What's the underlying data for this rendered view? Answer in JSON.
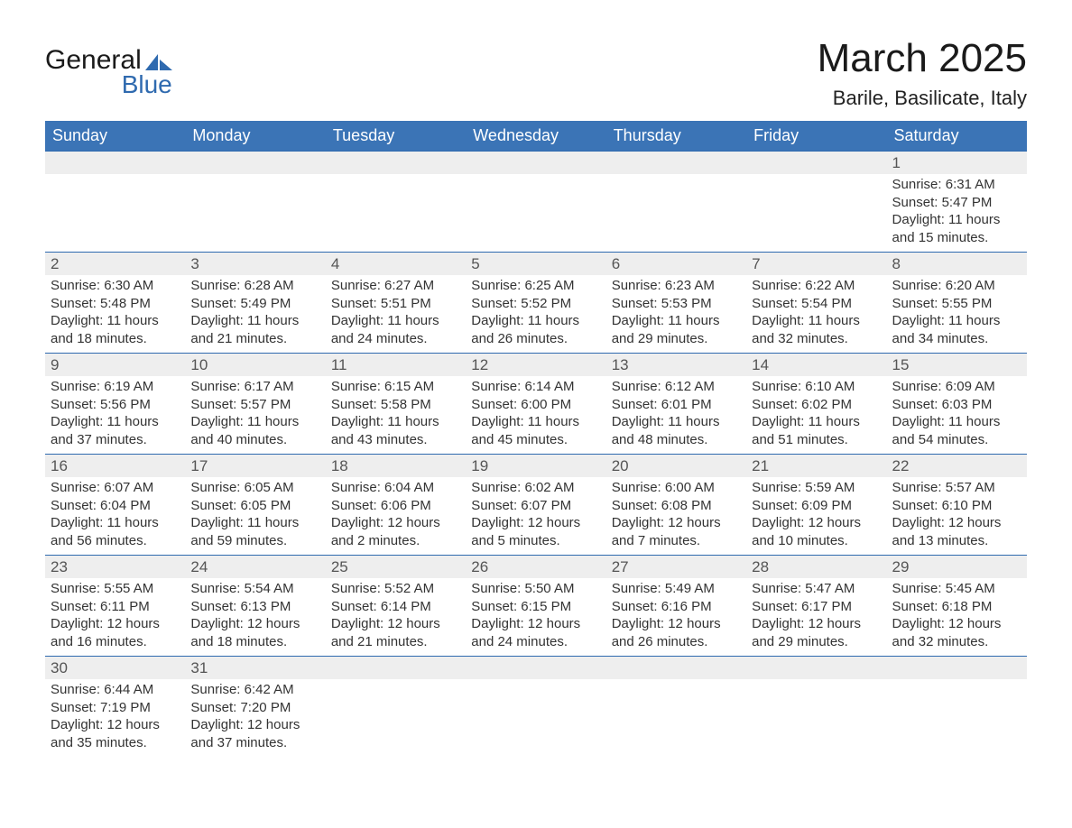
{
  "brand": {
    "line1": "General",
    "line2": "Blue",
    "accent_color": "#2f6aaf",
    "text_color": "#1a1a1a"
  },
  "title": "March 2025",
  "location": "Barile, Basilicate, Italy",
  "header_bg": "#3b74b6",
  "daynum_bg": "#eeeeee",
  "border_color": "#2f6aaf",
  "days_of_week": [
    "Sunday",
    "Monday",
    "Tuesday",
    "Wednesday",
    "Thursday",
    "Friday",
    "Saturday"
  ],
  "weeks": [
    [
      null,
      null,
      null,
      null,
      null,
      null,
      {
        "n": "1",
        "sunrise": "Sunrise: 6:31 AM",
        "sunset": "Sunset: 5:47 PM",
        "dl1": "Daylight: 11 hours",
        "dl2": "and 15 minutes."
      }
    ],
    [
      {
        "n": "2",
        "sunrise": "Sunrise: 6:30 AM",
        "sunset": "Sunset: 5:48 PM",
        "dl1": "Daylight: 11 hours",
        "dl2": "and 18 minutes."
      },
      {
        "n": "3",
        "sunrise": "Sunrise: 6:28 AM",
        "sunset": "Sunset: 5:49 PM",
        "dl1": "Daylight: 11 hours",
        "dl2": "and 21 minutes."
      },
      {
        "n": "4",
        "sunrise": "Sunrise: 6:27 AM",
        "sunset": "Sunset: 5:51 PM",
        "dl1": "Daylight: 11 hours",
        "dl2": "and 24 minutes."
      },
      {
        "n": "5",
        "sunrise": "Sunrise: 6:25 AM",
        "sunset": "Sunset: 5:52 PM",
        "dl1": "Daylight: 11 hours",
        "dl2": "and 26 minutes."
      },
      {
        "n": "6",
        "sunrise": "Sunrise: 6:23 AM",
        "sunset": "Sunset: 5:53 PM",
        "dl1": "Daylight: 11 hours",
        "dl2": "and 29 minutes."
      },
      {
        "n": "7",
        "sunrise": "Sunrise: 6:22 AM",
        "sunset": "Sunset: 5:54 PM",
        "dl1": "Daylight: 11 hours",
        "dl2": "and 32 minutes."
      },
      {
        "n": "8",
        "sunrise": "Sunrise: 6:20 AM",
        "sunset": "Sunset: 5:55 PM",
        "dl1": "Daylight: 11 hours",
        "dl2": "and 34 minutes."
      }
    ],
    [
      {
        "n": "9",
        "sunrise": "Sunrise: 6:19 AM",
        "sunset": "Sunset: 5:56 PM",
        "dl1": "Daylight: 11 hours",
        "dl2": "and 37 minutes."
      },
      {
        "n": "10",
        "sunrise": "Sunrise: 6:17 AM",
        "sunset": "Sunset: 5:57 PM",
        "dl1": "Daylight: 11 hours",
        "dl2": "and 40 minutes."
      },
      {
        "n": "11",
        "sunrise": "Sunrise: 6:15 AM",
        "sunset": "Sunset: 5:58 PM",
        "dl1": "Daylight: 11 hours",
        "dl2": "and 43 minutes."
      },
      {
        "n": "12",
        "sunrise": "Sunrise: 6:14 AM",
        "sunset": "Sunset: 6:00 PM",
        "dl1": "Daylight: 11 hours",
        "dl2": "and 45 minutes."
      },
      {
        "n": "13",
        "sunrise": "Sunrise: 6:12 AM",
        "sunset": "Sunset: 6:01 PM",
        "dl1": "Daylight: 11 hours",
        "dl2": "and 48 minutes."
      },
      {
        "n": "14",
        "sunrise": "Sunrise: 6:10 AM",
        "sunset": "Sunset: 6:02 PM",
        "dl1": "Daylight: 11 hours",
        "dl2": "and 51 minutes."
      },
      {
        "n": "15",
        "sunrise": "Sunrise: 6:09 AM",
        "sunset": "Sunset: 6:03 PM",
        "dl1": "Daylight: 11 hours",
        "dl2": "and 54 minutes."
      }
    ],
    [
      {
        "n": "16",
        "sunrise": "Sunrise: 6:07 AM",
        "sunset": "Sunset: 6:04 PM",
        "dl1": "Daylight: 11 hours",
        "dl2": "and 56 minutes."
      },
      {
        "n": "17",
        "sunrise": "Sunrise: 6:05 AM",
        "sunset": "Sunset: 6:05 PM",
        "dl1": "Daylight: 11 hours",
        "dl2": "and 59 minutes."
      },
      {
        "n": "18",
        "sunrise": "Sunrise: 6:04 AM",
        "sunset": "Sunset: 6:06 PM",
        "dl1": "Daylight: 12 hours",
        "dl2": "and 2 minutes."
      },
      {
        "n": "19",
        "sunrise": "Sunrise: 6:02 AM",
        "sunset": "Sunset: 6:07 PM",
        "dl1": "Daylight: 12 hours",
        "dl2": "and 5 minutes."
      },
      {
        "n": "20",
        "sunrise": "Sunrise: 6:00 AM",
        "sunset": "Sunset: 6:08 PM",
        "dl1": "Daylight: 12 hours",
        "dl2": "and 7 minutes."
      },
      {
        "n": "21",
        "sunrise": "Sunrise: 5:59 AM",
        "sunset": "Sunset: 6:09 PM",
        "dl1": "Daylight: 12 hours",
        "dl2": "and 10 minutes."
      },
      {
        "n": "22",
        "sunrise": "Sunrise: 5:57 AM",
        "sunset": "Sunset: 6:10 PM",
        "dl1": "Daylight: 12 hours",
        "dl2": "and 13 minutes."
      }
    ],
    [
      {
        "n": "23",
        "sunrise": "Sunrise: 5:55 AM",
        "sunset": "Sunset: 6:11 PM",
        "dl1": "Daylight: 12 hours",
        "dl2": "and 16 minutes."
      },
      {
        "n": "24",
        "sunrise": "Sunrise: 5:54 AM",
        "sunset": "Sunset: 6:13 PM",
        "dl1": "Daylight: 12 hours",
        "dl2": "and 18 minutes."
      },
      {
        "n": "25",
        "sunrise": "Sunrise: 5:52 AM",
        "sunset": "Sunset: 6:14 PM",
        "dl1": "Daylight: 12 hours",
        "dl2": "and 21 minutes."
      },
      {
        "n": "26",
        "sunrise": "Sunrise: 5:50 AM",
        "sunset": "Sunset: 6:15 PM",
        "dl1": "Daylight: 12 hours",
        "dl2": "and 24 minutes."
      },
      {
        "n": "27",
        "sunrise": "Sunrise: 5:49 AM",
        "sunset": "Sunset: 6:16 PM",
        "dl1": "Daylight: 12 hours",
        "dl2": "and 26 minutes."
      },
      {
        "n": "28",
        "sunrise": "Sunrise: 5:47 AM",
        "sunset": "Sunset: 6:17 PM",
        "dl1": "Daylight: 12 hours",
        "dl2": "and 29 minutes."
      },
      {
        "n": "29",
        "sunrise": "Sunrise: 5:45 AM",
        "sunset": "Sunset: 6:18 PM",
        "dl1": "Daylight: 12 hours",
        "dl2": "and 32 minutes."
      }
    ],
    [
      {
        "n": "30",
        "sunrise": "Sunrise: 6:44 AM",
        "sunset": "Sunset: 7:19 PM",
        "dl1": "Daylight: 12 hours",
        "dl2": "and 35 minutes."
      },
      {
        "n": "31",
        "sunrise": "Sunrise: 6:42 AM",
        "sunset": "Sunset: 7:20 PM",
        "dl1": "Daylight: 12 hours",
        "dl2": "and 37 minutes."
      },
      null,
      null,
      null,
      null,
      null
    ]
  ]
}
